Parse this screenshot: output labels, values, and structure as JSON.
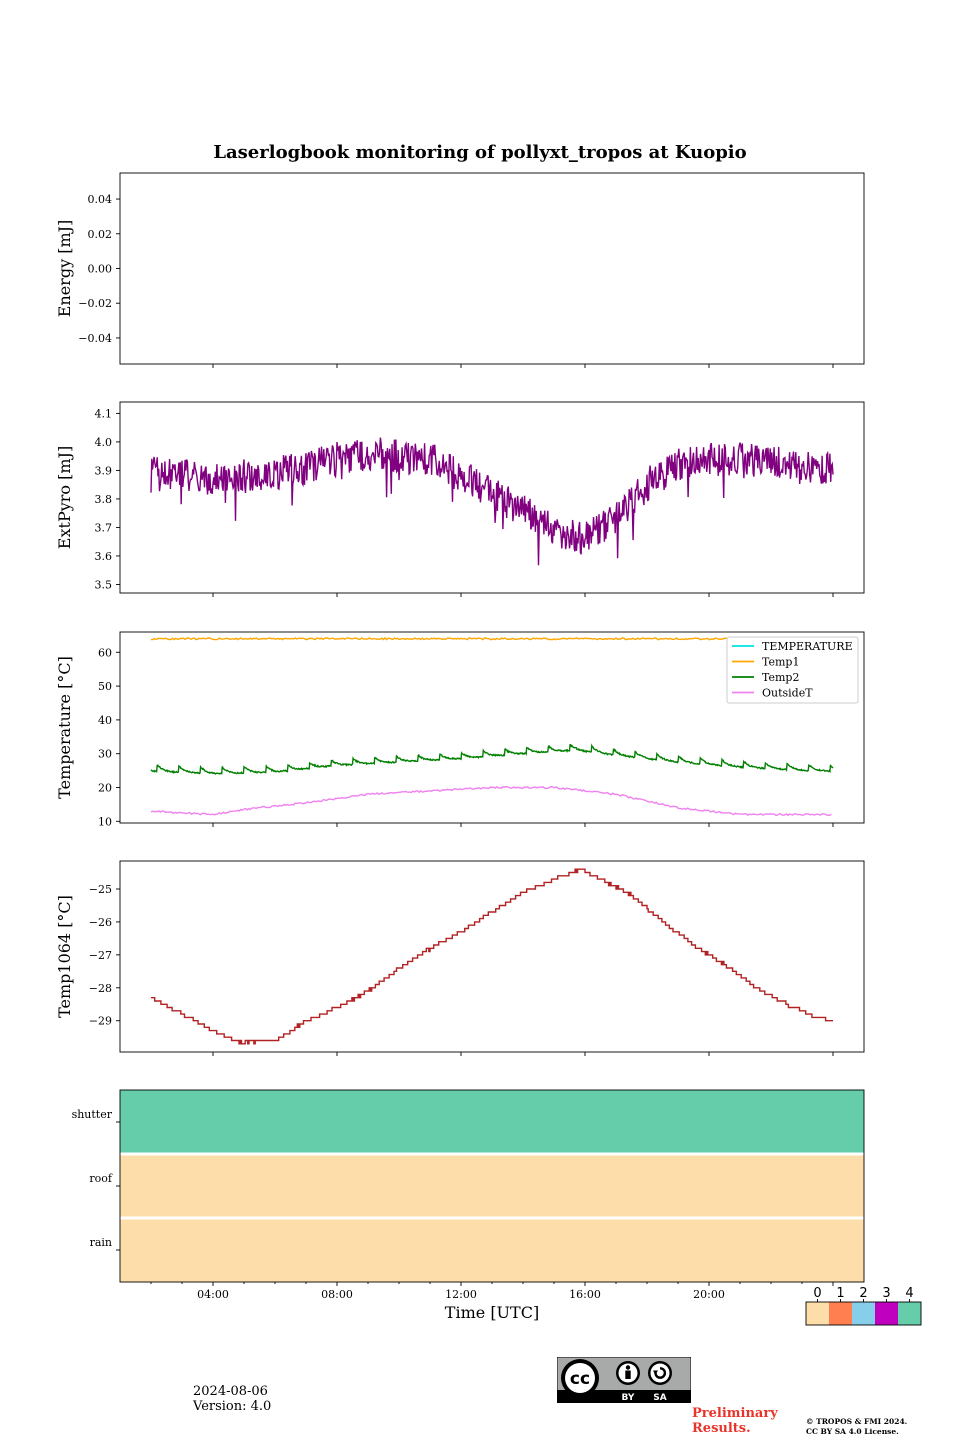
{
  "figure_title": "Laserlogbook monitoring of pollyxt_tropos at Kuopio",
  "xlabel": "Time [UTC]",
  "x_tick_labels": [
    "04:00",
    "08:00",
    "12:00",
    "16:00",
    "20:00"
  ],
  "date": "2024-08-06",
  "version": "Version: 4.0",
  "preliminary": [
    "Preliminary",
    "Results."
  ],
  "copyright": [
    "© TROPOS & FMI 2024.",
    "CC BY SA 4.0 License."
  ],
  "cc_badge": {
    "cc": "cc",
    "by": "BY",
    "sa": "SA"
  },
  "chart_data": [
    {
      "type": "line",
      "ylabel": "Energy [mJ]",
      "ylim": [
        -0.055,
        0.055
      ],
      "yticks": [
        -0.04,
        -0.02,
        0.0,
        0.02,
        0.04
      ],
      "ytick_labels": [
        "−0.04",
        "−0.02",
        "0.00",
        "0.02",
        "0.04"
      ],
      "xlim": [
        0,
        24
      ],
      "series": []
    },
    {
      "type": "line",
      "ylabel": "ExtPyro [mJ]",
      "ylim": [
        3.47,
        4.14
      ],
      "yticks": [
        3.5,
        3.6,
        3.7,
        3.8,
        3.9,
        4.0,
        4.1
      ],
      "ytick_labels": [
        "3.5",
        "3.6",
        "3.7",
        "3.8",
        "3.9",
        "4.0",
        "4.1"
      ],
      "xlim": [
        0,
        24
      ],
      "series": [
        {
          "color": "#800080",
          "noise": 0.06,
          "x": [
            1.0,
            2.0,
            3.0,
            4.0,
            5.0,
            6.0,
            7.0,
            8.0,
            9.0,
            10.0,
            11.0,
            12.0,
            13.0,
            14.0,
            15.0,
            16.0,
            17.0,
            18.0,
            19.0,
            20.0,
            21.0,
            22.0,
            23.0
          ],
          "y": [
            3.89,
            3.88,
            3.87,
            3.88,
            3.89,
            3.91,
            3.94,
            3.96,
            3.95,
            3.94,
            3.88,
            3.82,
            3.76,
            3.69,
            3.66,
            3.73,
            3.85,
            3.92,
            3.94,
            3.94,
            3.93,
            3.91,
            3.9
          ]
        }
      ]
    },
    {
      "type": "line",
      "ylabel": "Temperature [°C]",
      "ylim": [
        9.5,
        66
      ],
      "yticks": [
        10,
        20,
        30,
        40,
        50,
        60
      ],
      "ytick_labels": [
        "10",
        "20",
        "30",
        "40",
        "50",
        "60"
      ],
      "xlim": [
        0,
        24
      ],
      "legend": "top-right",
      "series": [
        {
          "name": "TEMPERATURE",
          "color": "#00e5e5",
          "x": [],
          "y": []
        },
        {
          "name": "Temp1",
          "color": "#ffa500",
          "x": [
            1.0,
            23.0
          ],
          "y": [
            64,
            64
          ]
        },
        {
          "name": "Temp2",
          "color": "#008000",
          "sawtooth": true,
          "x": [
            1.0,
            3.0,
            5.0,
            7.0,
            9.0,
            11.0,
            13.0,
            14.7,
            16.0,
            18.0,
            20.0,
            22.0,
            23.0
          ],
          "y": [
            24.8,
            24.0,
            24.5,
            26.5,
            27.5,
            28.5,
            30.0,
            31.0,
            29.5,
            27.5,
            26.0,
            25.0,
            24.8
          ]
        },
        {
          "name": "OutsideT",
          "color": "#ee82ee",
          "x": [
            1.0,
            3.0,
            4.0,
            6.0,
            8.0,
            10.0,
            12.0,
            14.0,
            16.0,
            18.0,
            20.0,
            22.0,
            23.0
          ],
          "y": [
            13.0,
            12.0,
            13.5,
            15.5,
            18.0,
            19.0,
            20.0,
            20.0,
            18.0,
            14.0,
            12.0,
            12.0,
            12.0
          ]
        }
      ]
    },
    {
      "type": "line",
      "ylabel": "Temp1064 [°C]",
      "ylim": [
        -29.95,
        -24.15
      ],
      "yticks": [
        -29,
        -28,
        -27,
        -26,
        -25
      ],
      "ytick_labels": [
        "−29",
        "−28",
        "−27",
        "−26",
        "−25"
      ],
      "xlim": [
        0,
        24
      ],
      "series": [
        {
          "color": "#b22222",
          "step": 0.1,
          "x": [
            1.0,
            2.0,
            3.0,
            3.8,
            5.0,
            6.0,
            7.0,
            8.0,
            9.0,
            10.0,
            11.0,
            12.0,
            13.0,
            14.0,
            14.8,
            15.5,
            16.5,
            17.5,
            18.5,
            19.5,
            20.5,
            21.5,
            22.5,
            23.0
          ],
          "y": [
            -28.3,
            -28.8,
            -29.3,
            -29.65,
            -29.6,
            -29.0,
            -28.6,
            -28.1,
            -27.4,
            -26.8,
            -26.3,
            -25.7,
            -25.1,
            -24.7,
            -24.4,
            -24.7,
            -25.2,
            -26.0,
            -26.7,
            -27.3,
            -28.0,
            -28.5,
            -28.9,
            -29.0
          ]
        }
      ]
    },
    {
      "type": "heatmap",
      "rows": [
        "shutter",
        "roof",
        "rain"
      ],
      "values": [
        4,
        0,
        0
      ],
      "colorbar_ticks": [
        "0",
        "1",
        "2",
        "3",
        "4"
      ],
      "colors": [
        "#fddeaa",
        "#ff7f50",
        "#87ceeb",
        "#bf00bf",
        "#66cdaa"
      ]
    }
  ]
}
